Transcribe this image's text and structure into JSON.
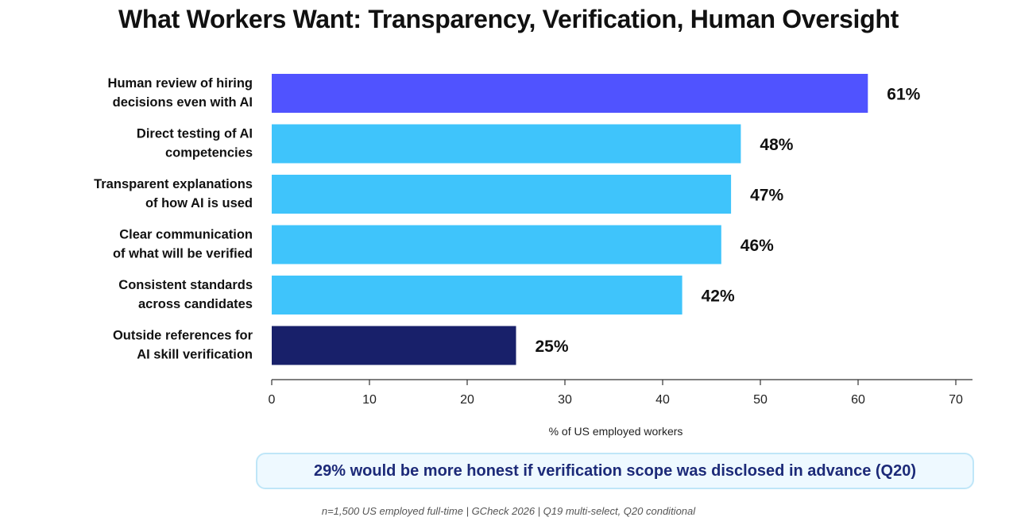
{
  "chart_data": {
    "type": "bar",
    "orientation": "horizontal",
    "title": "What Workers Want: Transparency, Verification, Human Oversight",
    "categories": [
      [
        "Human review of hiring",
        "decisions even with AI"
      ],
      [
        "Direct testing of AI",
        "competencies"
      ],
      [
        "Transparent explanations",
        "of how AI is used"
      ],
      [
        "Clear communication",
        "of what will be verified"
      ],
      [
        "Consistent standards",
        "across candidates"
      ],
      [
        "Outside references for",
        "AI skill verification"
      ]
    ],
    "values": [
      61,
      48,
      47,
      46,
      42,
      25
    ],
    "value_labels": [
      "61%",
      "48%",
      "47%",
      "46%",
      "42%",
      "25%"
    ],
    "bar_colors": [
      "#5053ff",
      "#3fc4fb",
      "#3fc4fb",
      "#3fc4fb",
      "#3fc4fb",
      "#18206a"
    ],
    "xlabel": "% of US employed workers",
    "ylabel": "",
    "xlim": [
      0,
      70
    ],
    "xticks": [
      0,
      10,
      20,
      30,
      40,
      50,
      60,
      70
    ],
    "grid": false
  },
  "callout": {
    "text": "29% would be more honest if verification scope was disclosed in advance (Q20)"
  },
  "footnote": {
    "text": "n=1,500 US employed full-time | GCheck 2026 | Q19 multi-select, Q20 conditional"
  },
  "colors": {
    "accent_purple": "#5053ff",
    "accent_cyan": "#3fc4fb",
    "accent_navy": "#18206a",
    "callout_text": "#1c2a78"
  }
}
